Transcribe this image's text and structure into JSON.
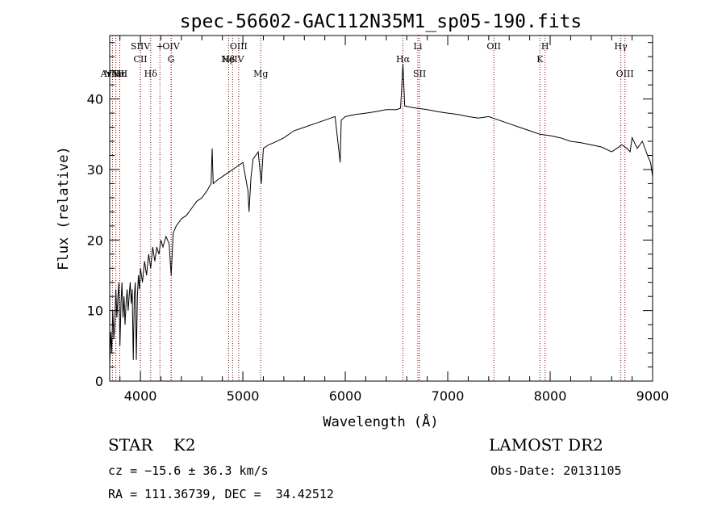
{
  "chart_data": {
    "type": "line",
    "title": "spec-56602-GAC112N35M1_sp05-190.fits",
    "xlabel": "Wavelength (Å)",
    "ylabel": "Flux (relative)",
    "xlim": [
      3700,
      9000
    ],
    "ylim": [
      0,
      49
    ],
    "xticks": [
      4000,
      5000,
      6000,
      7000,
      8000,
      9000
    ],
    "xtick_labels": [
      "4000",
      "5000",
      "6000",
      "7000",
      "8000",
      "9000"
    ],
    "yticks": [
      0,
      10,
      20,
      30,
      40
    ],
    "ytick_labels": [
      "0",
      "10",
      "20",
      "30",
      "40"
    ],
    "grid": false,
    "line_color": "#000000",
    "marker_color": "#8b0000",
    "series": [
      {
        "values": [
          [
            3700,
            2
          ],
          [
            3710,
            7
          ],
          [
            3720,
            4
          ],
          [
            3730,
            10
          ],
          [
            3740,
            6
          ],
          [
            3750,
            8
          ],
          [
            3760,
            13
          ],
          [
            3770,
            9
          ],
          [
            3780,
            12
          ],
          [
            3790,
            14
          ],
          [
            3800,
            5
          ],
          [
            3810,
            11
          ],
          [
            3820,
            14
          ],
          [
            3830,
            9
          ],
          [
            3840,
            12
          ],
          [
            3850,
            8
          ],
          [
            3860,
            11
          ],
          [
            3870,
            13
          ],
          [
            3880,
            10
          ],
          [
            3890,
            12
          ],
          [
            3900,
            14
          ],
          [
            3910,
            11
          ],
          [
            3920,
            13
          ],
          [
            3930,
            3
          ],
          [
            3940,
            12
          ],
          [
            3950,
            14
          ],
          [
            3960,
            3
          ],
          [
            3970,
            12
          ],
          [
            3980,
            15
          ],
          [
            3990,
            13
          ],
          [
            4000,
            16
          ],
          [
            4020,
            14
          ],
          [
            4040,
            17
          ],
          [
            4060,
            15
          ],
          [
            4080,
            18
          ],
          [
            4100,
            16
          ],
          [
            4120,
            19
          ],
          [
            4140,
            17
          ],
          [
            4160,
            19
          ],
          [
            4180,
            18
          ],
          [
            4200,
            20
          ],
          [
            4220,
            19
          ],
          [
            4250,
            20.5
          ],
          [
            4280,
            19.5
          ],
          [
            4300,
            15
          ],
          [
            4320,
            21
          ],
          [
            4350,
            22
          ],
          [
            4400,
            23
          ],
          [
            4450,
            23.5
          ],
          [
            4500,
            24.5
          ],
          [
            4550,
            25.5
          ],
          [
            4600,
            26
          ],
          [
            4650,
            27
          ],
          [
            4690,
            28
          ],
          [
            4700,
            33
          ],
          [
            4710,
            28
          ],
          [
            4750,
            28.5
          ],
          [
            4800,
            29
          ],
          [
            4850,
            29.5
          ],
          [
            4900,
            30
          ],
          [
            4950,
            30.5
          ],
          [
            5000,
            31
          ],
          [
            5050,
            27
          ],
          [
            5060,
            24
          ],
          [
            5080,
            29
          ],
          [
            5100,
            31.5
          ],
          [
            5150,
            32.5
          ],
          [
            5180,
            28
          ],
          [
            5200,
            33
          ],
          [
            5250,
            33.5
          ],
          [
            5300,
            33.8
          ],
          [
            5400,
            34.5
          ],
          [
            5500,
            35.5
          ],
          [
            5600,
            36
          ],
          [
            5700,
            36.5
          ],
          [
            5800,
            37
          ],
          [
            5900,
            37.5
          ],
          [
            5950,
            31
          ],
          [
            5960,
            37
          ],
          [
            6000,
            37.5
          ],
          [
            6100,
            37.8
          ],
          [
            6200,
            38
          ],
          [
            6300,
            38.2
          ],
          [
            6400,
            38.5
          ],
          [
            6500,
            38.5
          ],
          [
            6540,
            38.7
          ],
          [
            6563,
            45
          ],
          [
            6580,
            39
          ],
          [
            6650,
            38.8
          ],
          [
            6700,
            38.7
          ],
          [
            6800,
            38.5
          ],
          [
            6900,
            38.2
          ],
          [
            7000,
            38
          ],
          [
            7100,
            37.8
          ],
          [
            7200,
            37.5
          ],
          [
            7300,
            37.3
          ],
          [
            7400,
            37.5
          ],
          [
            7500,
            37
          ],
          [
            7600,
            36.5
          ],
          [
            7700,
            36
          ],
          [
            7800,
            35.5
          ],
          [
            7900,
            35
          ],
          [
            8000,
            34.8
          ],
          [
            8100,
            34.5
          ],
          [
            8200,
            34
          ],
          [
            8300,
            33.8
          ],
          [
            8400,
            33.5
          ],
          [
            8500,
            33.2
          ],
          [
            8600,
            32.5
          ],
          [
            8650,
            33
          ],
          [
            8700,
            33.5
          ],
          [
            8750,
            33
          ],
          [
            8780,
            32.5
          ],
          [
            8800,
            34.5
          ],
          [
            8850,
            33
          ],
          [
            8900,
            34
          ],
          [
            8950,
            32
          ],
          [
            8980,
            31
          ],
          [
            9000,
            29
          ]
        ]
      }
    ],
    "line_markers": [
      {
        "wl": 3727,
        "label": "ArNe",
        "row": 2
      },
      {
        "wl": 3760,
        "label": "NeIII",
        "row": 2
      },
      {
        "wl": 3798,
        "label": "Hε",
        "row": 2
      },
      {
        "wl": 4000,
        "label": "SIIV",
        "row": 0
      },
      {
        "wl": 4000,
        "label": "CII",
        "row": 1
      },
      {
        "wl": 4100,
        "label": "Hδ",
        "row": 2
      },
      {
        "wl": 4190,
        "label": "+",
        "row": 0
      },
      {
        "wl": 4300,
        "label": "OIV",
        "row": 0
      },
      {
        "wl": 4300,
        "label": "G",
        "row": 1
      },
      {
        "wl": 4861,
        "label": "Hβ",
        "row": 1
      },
      {
        "wl": 4900,
        "label": "NeIV",
        "row": 1
      },
      {
        "wl": 4959,
        "label": "OIII",
        "row": 0
      },
      {
        "wl": 5175,
        "label": "Mg",
        "row": 2
      },
      {
        "wl": 6563,
        "label": "Hα",
        "row": 1
      },
      {
        "wl": 6708,
        "label": "Li",
        "row": 0
      },
      {
        "wl": 6725,
        "label": "SII",
        "row": 2
      },
      {
        "wl": 7450,
        "label": "OII",
        "row": 0
      },
      {
        "wl": 7900,
        "label": "K",
        "row": 1
      },
      {
        "wl": 7950,
        "label": "H",
        "row": 0
      },
      {
        "wl": 8690,
        "label": "Hγ",
        "row": 0
      },
      {
        "wl": 8730,
        "label": "OIII",
        "row": 2
      }
    ]
  },
  "info": {
    "object_class": "STAR    K2",
    "survey": "LAMOST DR2",
    "redshift": "cz = −15.6 ± 36.3 km/s",
    "obs_date": "Obs-Date: 20131105",
    "coords": "RA = 111.36739, DEC =  34.42512"
  }
}
